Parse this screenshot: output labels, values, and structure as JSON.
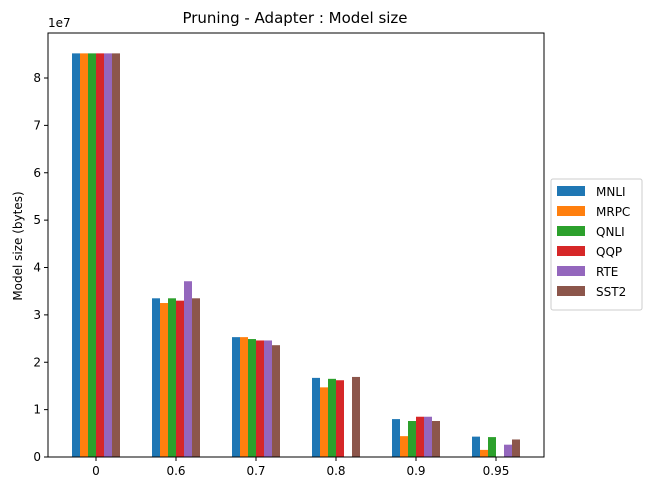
{
  "chart_data": {
    "type": "bar",
    "title": "Pruning - Adapter : Model size",
    "xlabel": "",
    "ylabel": "Model size (bytes)",
    "y_offset_label": "1e7",
    "y_scale_factor": 10000000,
    "ylim": [
      0,
      8.95
    ],
    "yticks": [
      0,
      1,
      2,
      3,
      4,
      5,
      6,
      7,
      8
    ],
    "grid": false,
    "legend_position": "right",
    "categories": [
      "0",
      "0.6",
      "0.7",
      "0.8",
      "0.9",
      "0.95"
    ],
    "series": [
      {
        "name": "MNLI",
        "color": "#1f77b4",
        "values": [
          8.52,
          3.35,
          2.53,
          1.67,
          0.8,
          0.43
        ]
      },
      {
        "name": "MRPC",
        "color": "#ff7f0e",
        "values": [
          8.52,
          3.25,
          2.53,
          1.47,
          0.44,
          0.15
        ]
      },
      {
        "name": "QNLI",
        "color": "#2ca02c",
        "values": [
          8.52,
          3.35,
          2.49,
          1.65,
          0.76,
          0.42
        ]
      },
      {
        "name": "QQP",
        "color": "#d62728",
        "values": [
          8.52,
          3.3,
          2.46,
          1.62,
          0.85,
          0.0
        ]
      },
      {
        "name": "RTE",
        "color": "#9467bd",
        "values": [
          8.52,
          3.71,
          2.46,
          0.0,
          0.85,
          0.26
        ]
      },
      {
        "name": "SST2",
        "color": "#8c564b",
        "values": [
          8.52,
          3.35,
          2.36,
          1.69,
          0.76,
          0.37
        ]
      }
    ]
  }
}
